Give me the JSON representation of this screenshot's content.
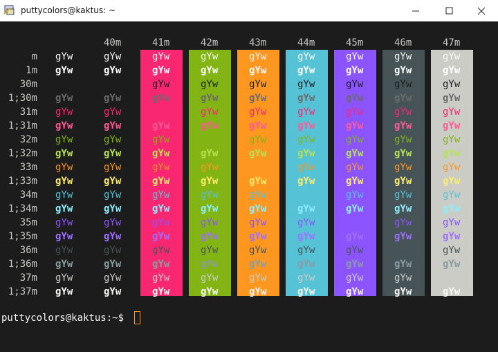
{
  "window": {
    "title": "puttycolors@kaktus: ~"
  },
  "terminal": {
    "background": "#1c1c1c",
    "sample": "gYw",
    "default_color": "#c8c8c2",
    "columns": [
      {
        "label": "40m",
        "background": "#1c1c1c"
      },
      {
        "label": "41m",
        "background": "#f92672"
      },
      {
        "label": "42m",
        "background": "#82b414"
      },
      {
        "label": "43m",
        "background": "#fd971f"
      },
      {
        "label": "44m",
        "background": "#56c2d6"
      },
      {
        "label": "45m",
        "background": "#8c54fe"
      },
      {
        "label": "46m",
        "background": "#465457"
      },
      {
        "label": "47m",
        "background": "#ccccc6"
      }
    ],
    "rows": [
      {
        "label": "m",
        "color": "#f8f8f2",
        "bold": false
      },
      {
        "label": "1m",
        "color": "#ffffff",
        "bold": true
      },
      {
        "label": "30m",
        "color": "#1b1d1e",
        "bold": false
      },
      {
        "label": "1;30m",
        "color": "#6b6b6b",
        "bold": true
      },
      {
        "label": "31m",
        "color": "#f92672",
        "bold": false
      },
      {
        "label": "1;31m",
        "color": "#ff5995",
        "bold": true
      },
      {
        "label": "32m",
        "color": "#82b414",
        "bold": false
      },
      {
        "label": "1;32m",
        "color": "#b6e354",
        "bold": true
      },
      {
        "label": "33m",
        "color": "#fd971f",
        "bold": false
      },
      {
        "label": "1;33m",
        "color": "#feed6c",
        "bold": true
      },
      {
        "label": "34m",
        "color": "#56c2d6",
        "bold": false
      },
      {
        "label": "1;34m",
        "color": "#8cedff",
        "bold": true
      },
      {
        "label": "35m",
        "color": "#8c54fe",
        "bold": false
      },
      {
        "label": "1;35m",
        "color": "#9e6ffe",
        "bold": true
      },
      {
        "label": "36m",
        "color": "#465457",
        "bold": false
      },
      {
        "label": "1;36m",
        "color": "#899ca1",
        "bold": true
      },
      {
        "label": "37m",
        "color": "#ccccc6",
        "bold": false
      },
      {
        "label": "1;37m",
        "color": "#f8f8f2",
        "bold": true
      }
    ],
    "prompt": "puttycolors@kaktus:~$",
    "cursor_color": "#fd971f"
  }
}
